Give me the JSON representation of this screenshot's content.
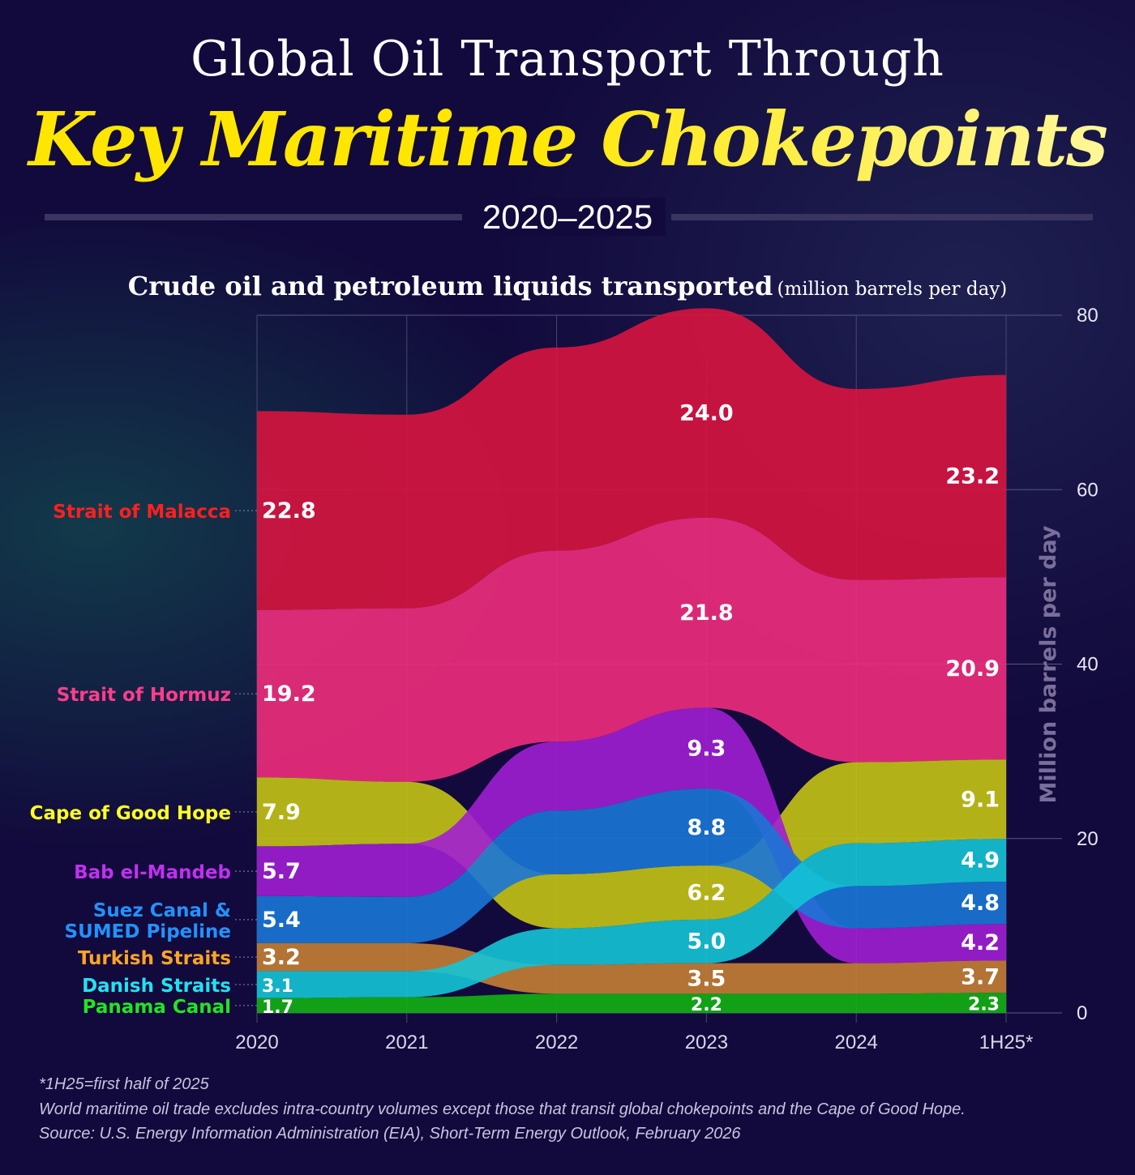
{
  "header": {
    "title_line1": "Global Oil Transport Through",
    "title_line2": "Key Maritime Chokepoints",
    "years": "2020–2025",
    "subtitle_bold": "Crude oil and petroleum liquids transported",
    "subtitle_unit": "(million barrels per day)"
  },
  "chart_data": {
    "type": "area",
    "stacking": "ranked ribbon (largest on top at each year)",
    "categories": [
      "2020",
      "2021",
      "2022",
      "2023",
      "2024",
      "1H25*"
    ],
    "labeled_categories": [
      "2020",
      "2023",
      "1H25*"
    ],
    "ylabel": "Million barrels per day",
    "ylim": [
      0,
      80
    ],
    "yticks": [
      0,
      20,
      40,
      60,
      80
    ],
    "grid": true,
    "y_axis_side": "right",
    "series": [
      {
        "name": "Strait of Malacca",
        "label_lines": [
          "Strait of Malacca"
        ],
        "values": [
          22.8,
          22.2,
          23.3,
          24.0,
          21.9,
          23.2
        ],
        "color": "#d8143f",
        "label_color": "#ff1f1f"
      },
      {
        "name": "Strait of Hormuz",
        "label_lines": [
          "Strait of Hormuz"
        ],
        "values": [
          19.2,
          19.9,
          21.9,
          21.8,
          20.9,
          20.9
        ],
        "color": "#f02c7c",
        "label_color": "#ff3d8c"
      },
      {
        "name": "Cape of Good Hope",
        "label_lines": [
          "Cape of Good Hope"
        ],
        "values": [
          7.9,
          7.1,
          6.2,
          6.2,
          9.3,
          9.1
        ],
        "color": "#c4c414",
        "label_color": "#ffff22"
      },
      {
        "name": "Bab el-Mandeb",
        "label_lines": [
          "Bab el-Mandeb"
        ],
        "values": [
          5.7,
          6.1,
          7.9,
          9.3,
          4.0,
          4.2
        ],
        "color": "#a01ed2",
        "label_color": "#c030f0"
      },
      {
        "name": "Suez Canal & SUMED Pipeline",
        "label_lines": [
          "Suez Canal &",
          "SUMED Pipeline"
        ],
        "values": [
          5.4,
          5.3,
          7.3,
          8.8,
          4.85,
          4.85
        ],
        "color": "#1a76d6",
        "label_color": "#2292ff"
      },
      {
        "name": "Turkish Straits",
        "label_lines": [
          "Turkish Straits"
        ],
        "values": [
          3.2,
          3.2,
          3.3,
          3.5,
          3.5,
          3.7
        ],
        "color": "#c47e34",
        "label_color": "#ffa424"
      },
      {
        "name": "Danish Straits",
        "label_lines": [
          "Danish Straits"
        ],
        "values": [
          3.1,
          3.0,
          4.2,
          5.0,
          4.9,
          4.9
        ],
        "color": "#14c4d6",
        "label_color": "#22e2f2"
      },
      {
        "name": "Panama Canal",
        "label_lines": [
          "Panama Canal"
        ],
        "values": [
          1.7,
          1.8,
          2.2,
          2.2,
          2.2,
          2.3
        ],
        "color": "#12b012",
        "label_color": "#22e422"
      }
    ]
  },
  "footnotes": {
    "note1": "*1H25=first half of 2025",
    "note2": "World maritime oil trade excludes intra-country volumes except those that transit global chokepoints and the Cape of Good Hope.",
    "source": "Source: U.S. Energy Information Administration (EIA), Short-Term Energy Outlook, February 2026"
  }
}
